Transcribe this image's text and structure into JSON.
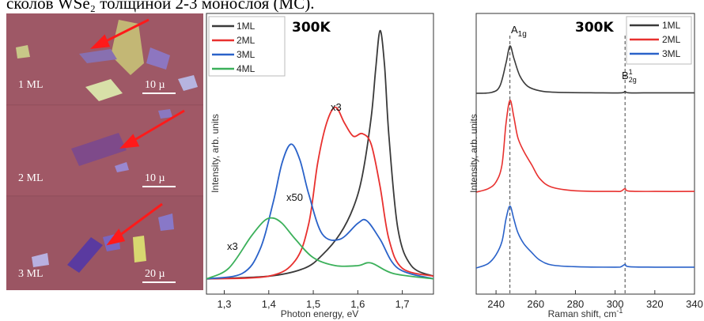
{
  "header": {
    "text": "сколов WSe₂ толщиной 2-3 монослоя (МС)."
  },
  "micrographs": [
    {
      "layer_label": "1 ML",
      "scale_label": "10 µ"
    },
    {
      "layer_label": "2 ML",
      "scale_label": "10 µ"
    },
    {
      "layer_label": "3 ML",
      "scale_label": "20 µ"
    }
  ],
  "colors": {
    "1ML": "#3a3a3a",
    "2ML": "#e8312f",
    "3ML": "#2a62c9",
    "4ML": "#3bb05a",
    "substrate": "#9c5563"
  },
  "chart_data": [
    {
      "type": "line",
      "title": "300K",
      "xlabel": "Photon energy, eV",
      "ylabel": "Intensity, arb. units",
      "xlim": [
        1.26,
        1.77
      ],
      "ylim": [
        0,
        1.0
      ],
      "xticks": [
        "1,3",
        "1,4",
        "1,5",
        "1,6",
        "1,7"
      ],
      "legend": "top-left",
      "annotations": [
        "x3",
        "x50",
        "x3"
      ],
      "series": [
        {
          "name": "1ML",
          "x": [
            1.26,
            1.4,
            1.48,
            1.52,
            1.56,
            1.59,
            1.61,
            1.63,
            1.64,
            1.65,
            1.66,
            1.67,
            1.69,
            1.72,
            1.77
          ],
          "y": [
            0.01,
            0.02,
            0.05,
            0.1,
            0.18,
            0.28,
            0.4,
            0.62,
            0.8,
            0.95,
            0.82,
            0.55,
            0.2,
            0.06,
            0.02
          ]
        },
        {
          "name": "2ML",
          "x": [
            1.26,
            1.4,
            1.46,
            1.49,
            1.51,
            1.53,
            1.55,
            1.57,
            1.59,
            1.61,
            1.63,
            1.65,
            1.67,
            1.7,
            1.77
          ],
          "y": [
            0.01,
            0.02,
            0.08,
            0.22,
            0.45,
            0.6,
            0.66,
            0.6,
            0.55,
            0.56,
            0.52,
            0.36,
            0.16,
            0.05,
            0.02
          ]
        },
        {
          "name": "3ML",
          "x": [
            1.26,
            1.34,
            1.38,
            1.41,
            1.43,
            1.45,
            1.47,
            1.49,
            1.52,
            1.56,
            1.6,
            1.62,
            1.65,
            1.69,
            1.77
          ],
          "y": [
            0.01,
            0.03,
            0.12,
            0.3,
            0.45,
            0.52,
            0.46,
            0.33,
            0.18,
            0.16,
            0.22,
            0.23,
            0.16,
            0.05,
            0.01
          ]
        },
        {
          "name": "4ML",
          "x": [
            1.26,
            1.31,
            1.36,
            1.39,
            1.41,
            1.43,
            1.46,
            1.5,
            1.55,
            1.6,
            1.63,
            1.68,
            1.77
          ],
          "y": [
            0.01,
            0.05,
            0.17,
            0.23,
            0.24,
            0.22,
            0.16,
            0.09,
            0.06,
            0.06,
            0.07,
            0.03,
            0.01
          ]
        }
      ]
    },
    {
      "type": "line",
      "title": "300K",
      "xlabel": "Raman shift, cm",
      "ylabel": "Intensity, arb. units",
      "xlim": [
        230,
        340
      ],
      "xticks": [
        "240",
        "260",
        "280",
        "300",
        "320",
        "340"
      ],
      "legend": "top-right",
      "annotations": [
        "A",
        "B"
      ],
      "reference_lines": [
        247,
        305
      ],
      "series": [
        {
          "name": "1ML",
          "x": [
            230,
            238,
            242,
            245,
            247,
            249,
            252,
            256,
            262,
            270,
            290,
            303,
            305,
            307,
            320,
            340
          ],
          "y": [
            0,
            0.2,
            1.5,
            6,
            9.5,
            7,
            3.5,
            1.4,
            0.5,
            0.2,
            0.1,
            0.1,
            0.4,
            0.1,
            0.1,
            0.1
          ]
        },
        {
          "name": "2ML",
          "x": [
            230,
            236,
            240,
            243,
            245,
            247,
            249,
            251,
            254,
            258,
            262,
            268,
            280,
            300,
            303,
            305,
            307,
            320,
            340
          ],
          "y": [
            0,
            1,
            3,
            8,
            20,
            27,
            22,
            16,
            12,
            8,
            4,
            1.5,
            0.4,
            0.2,
            0.3,
            1.0,
            0.3,
            0.2,
            0.2
          ]
        },
        {
          "name": "3ML",
          "x": [
            230,
            236,
            240,
            243,
            245,
            247,
            249,
            251,
            254,
            258,
            262,
            268,
            280,
            300,
            303,
            305,
            307,
            320,
            340
          ],
          "y": [
            0,
            1,
            3,
            6,
            11,
            14,
            11,
            8,
            5.5,
            3.5,
            1.8,
            0.7,
            0.3,
            0.2,
            0.3,
            0.8,
            0.3,
            0.2,
            0.2
          ]
        }
      ]
    }
  ]
}
